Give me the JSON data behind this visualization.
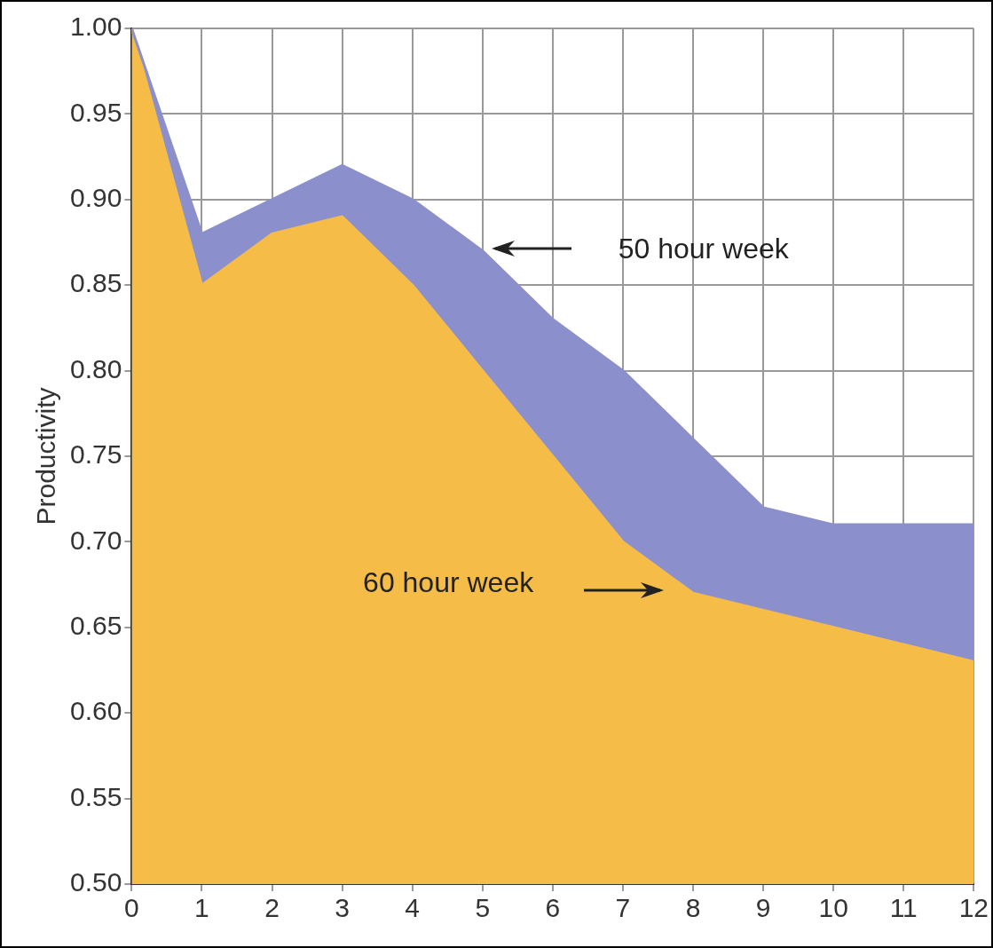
{
  "chart_data": {
    "type": "area",
    "ylabel": "Productivity",
    "x": [
      0,
      1,
      2,
      3,
      4,
      5,
      6,
      7,
      8,
      9,
      10,
      11,
      12
    ],
    "series": [
      {
        "color": "#8b8fcc",
        "values": [
          1.0,
          0.88,
          0.9,
          0.92,
          0.9,
          0.87,
          0.83,
          0.8,
          0.76,
          0.72,
          0.71,
          0.71,
          0.71
        ]
      },
      {
        "color": "#f5bd48",
        "values": [
          1.0,
          0.85,
          0.88,
          0.89,
          0.85,
          0.8,
          0.75,
          0.7,
          0.67,
          0.66,
          0.65,
          0.64,
          0.63
        ]
      }
    ],
    "xlim": [
      0,
      12
    ],
    "xticks": [
      0,
      1,
      2,
      3,
      4,
      5,
      6,
      7,
      8,
      9,
      10,
      11,
      12
    ],
    "ylim": [
      0.5,
      1.0
    ],
    "yticks": [
      {
        "value": 0.5,
        "label": "0.50"
      },
      {
        "value": 0.55,
        "label": "0.55"
      },
      {
        "value": 0.6,
        "label": "0.60"
      },
      {
        "value": 0.65,
        "label": "0.65"
      },
      {
        "value": 0.7,
        "label": "0.70"
      },
      {
        "value": 0.75,
        "label": "0.75"
      },
      {
        "value": 0.8,
        "label": "0.80"
      },
      {
        "value": 0.85,
        "label": "0.85"
      },
      {
        "value": 0.9,
        "label": "0.90"
      },
      {
        "value": 0.95,
        "label": "0.95"
      },
      {
        "value": 1.0,
        "label": "1.00"
      }
    ],
    "grid": true,
    "annotations": [
      "50 hour week",
      "60 hour week"
    ]
  }
}
